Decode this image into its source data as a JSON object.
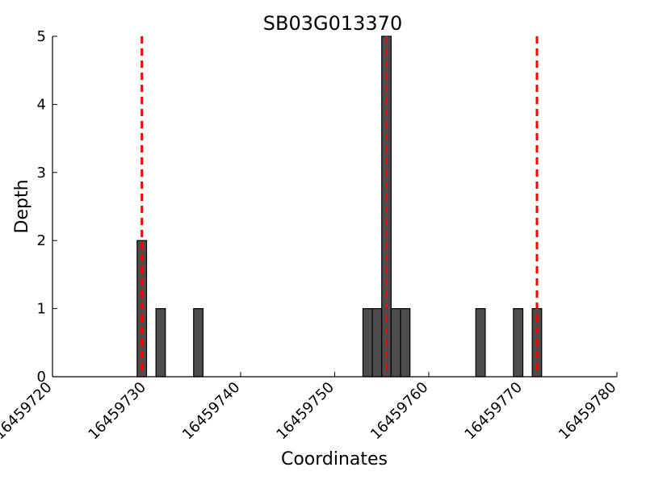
{
  "chart_data": {
    "type": "bar",
    "title": "SB03G013370",
    "xlabel": "Coordinates",
    "ylabel": "Depth",
    "xlim": [
      16459720,
      16459780
    ],
    "ylim": [
      0,
      5
    ],
    "x_ticks": [
      16459720,
      16459730,
      16459740,
      16459750,
      16459760,
      16459770,
      16459780
    ],
    "x_tick_labels": [
      "16459720",
      "16459730",
      "16459740",
      "16459750",
      "16459760",
      "16459770",
      "16459780"
    ],
    "y_ticks": [
      0,
      1,
      2,
      3,
      4,
      5
    ],
    "y_tick_labels": [
      "0",
      "1",
      "2",
      "3",
      "4",
      "5"
    ],
    "bar_width": 1,
    "bars": [
      {
        "x": 16459729,
        "depth": 2
      },
      {
        "x": 16459731,
        "depth": 1
      },
      {
        "x": 16459735,
        "depth": 1
      },
      {
        "x": 16459753,
        "depth": 1
      },
      {
        "x": 16459754,
        "depth": 1
      },
      {
        "x": 16459755,
        "depth": 5
      },
      {
        "x": 16459756,
        "depth": 1
      },
      {
        "x": 16459757,
        "depth": 1
      },
      {
        "x": 16459765,
        "depth": 1
      },
      {
        "x": 16459769,
        "depth": 1
      },
      {
        "x": 16459771,
        "depth": 1
      }
    ],
    "reference_lines": [
      16459729.5,
      16459755.5,
      16459771.5
    ],
    "bar_color": "#4d4d4d",
    "bar_edge_color": "#000000",
    "reference_line_color": "#ff0000",
    "reference_line_style": "dashed",
    "grid": false
  }
}
